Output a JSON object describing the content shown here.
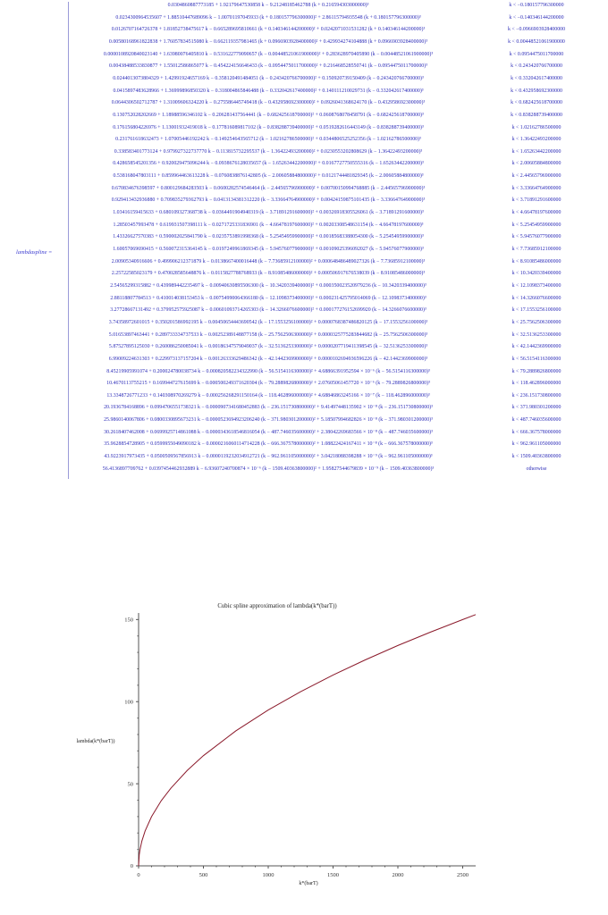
{
  "piecewise": {
    "label": "lambdaspline =",
    "rows": [
      {
        "expr": "0.0304860887773185 + 1.92179647530858 k − 9.21248185462788 (k + 0.216594303000000)³",
        "cond": "k < −0.180157796300000"
      },
      {
        "expr": "0.0234300964535607 + 1.88510447689096 k − 1.00701197045933 (k + 0.180157796300000)² + 2.86115794935548 (k + 0.180157796300000)³",
        "cond": "k < −0.140346144200000"
      },
      {
        "expr": "0.0126707164726378 + 1.81852738475617 k − 0.665289695810661 (k + 0.140346144200000)² + 0.0242071031531282 (k + 0.140346144200000)³",
        "cond": "k < −0.0966903928400000"
      },
      {
        "expr": "0.00580168961822838 + 1.76057834515080 k − 0.662119357981465 (k + 0.0966903928400000)² + 0.429934274104888 (k + 0.0966903928400000)³",
        "cond": "k < 0.00448521061900000"
      },
      {
        "expr": "0.0000108920840023140 + 1.63980076405810 k − 0.531622779090657 (k − 0.00448521061900000)² + 0.283628970405890 (k − 0.00448521061900000)³",
        "cond": "k < 0.0954475011700000"
      },
      {
        "expr": "0.00438488533830877 + 1.55012586865077 k − 0.454224156646433 (k − 0.0954475011700000)² + 0.216468528550741 (k − 0.0954475011700000)³",
        "cond": "k < 0.243420766700000"
      },
      {
        "expr": "0.0244013073804329 + 1.42991924657169 k − 0.358120491484051 (k − 0.243420766700000)² + 0.150920739150409 (k − 0.243420766700000)³",
        "cond": "k < 0.332042617400000"
      },
      {
        "expr": "0.0415897483628966 + 1.36999896850320 k − 0.318004865846488 (k − 0.332042617400000)² + 0.140111210029731 (k − 0.332042617400000)³",
        "cond": "k < 0.432958692300000"
      },
      {
        "expr": "0.0644306502712787 + 1.31009606324220 k − 0.275586445749418 (k − 0.432958692300000)² + 0.0926041368624170 (k − 0.432958692300000)³",
        "cond": "k < 0.682425618700000"
      },
      {
        "expr": "0.130752028202669 + 1.18988596346102 k − 0.206281437564441 (k − 0.682425618700000)² + 0.0608768078458791 (k − 0.682425618700000)³",
        "cond": "k < 0.838288739400000"
      },
      {
        "expr": "0.176156804226976 + 1.13001932419018 k − 0.177816089817102 (k − 0.838288739400000)² + 0.0519282616443149 (k − 0.838288739400000)³",
        "cond": "k < 1.02162786500000"
      },
      {
        "expr": "0.231761618632473 + 1.07005446192242 k − 0.149254643565712 (k − 1.02162786500000)² + 0.0344806525252356 (k − 1.02162786500000)³",
        "cond": "k < 1.36422493200000"
      },
      {
        "expr": "0.338583401773124 + 0.979927322737770 k − 0.113815732295537 (k − 1.36422493200000)² + 0.0230553202808629 (k − 1.36422493200000)³",
        "cond": "k < 1.65263442200000"
      },
      {
        "expr": "0.428658545201356 + 0.920029475096244 k − 0.0938676128035657 (k − 1.65263442200000)² + 0.0167727750555316 (k − 1.65263442200000)³",
        "cond": "k < 2.00605884800000"
      },
      {
        "expr": "0.538168047803111 + 0.859964463613228 k − 0.0760838876142805 (k − 2.00605884800000)² + 0.0121744481829345 (k − 2.00605884800000)³",
        "cond": "k < 2.44565796900000"
      },
      {
        "expr": "0.670834676398597 + 0.800129684283503 k − 0.0600282574546464 (k − 2.44565796900000)² + 0.00700150994768885 (k − 2.44565796900000)³",
        "cond": "k < 3.33664764900000"
      },
      {
        "expr": "0.929413432936880 + 0.709835279362793 k − 0.0413134381312220 (k − 3.33664764900000)² + 0.00424159875101435 (k − 3.33664764900000)³",
        "cond": "k < 3.71891291600000"
      },
      {
        "expr": "1.03416159415633 + 0.680109327368738 k − 0.0364491904940319 (k − 3.71891291600000)² + 0.00326918305526061 (k − 3.71891291600000)³",
        "cond": "k < 4.66478197600000"
      },
      {
        "expr": "1.28503457993478 + 0.619931507398111 k − 0.0271725331836901 (k − 4.66478197600000)² + 0.00203308548631154 (k − 4.66478197600000)³",
        "cond": "k < 5.25454959900000"
      },
      {
        "expr": "1.43326627570383 + 0.590002025841790 k − 0.0235753891998368 (k − 5.25454959900000)² + 0.00185683388054300 (k − 5.25454959900000)³",
        "cond": "k < 5.94576077900000"
      },
      {
        "expr": "1.60057069690415 + 0.560072315364145 k − 0.0197249961869345 (k − 5.94576077900000)² + 0.00109025396092027 (k − 5.94576077900000)³",
        "cond": "k < 7.73685912100000"
      },
      {
        "expr": "2.00905340916606 + 0.499906212371879 k − 0.0138667400016448 (k − 7.73685912100000)² + 0.000648486489027326 (k − 7.73685912100000)³",
        "cond": "k < 8.91085486000000"
      },
      {
        "expr": "2.25722585023179 + 0.470028585648876 k − 0.0115827788768933 (k − 8.91085486000000)² + 0.000506917676538039 (k − 8.91085486000000)³",
        "cond": "k < 10.3420339400000"
      },
      {
        "expr": "2.54565299315882 + 0.439989442235497 k − 0.00940630895506300 (k − 10.3420339400000)² + 0.000350023520979236 (k − 10.3420339400000)³",
        "cond": "k < 12.1098373400000"
      },
      {
        "expr": "2.88118807784513 + 0.410014038153453 k − 0.00754990064366180 (k − 12.1098373400000)² + 0.000231425795014069 (k − 12.1098373400000)³",
        "cond": "k < 14.3266076600000"
      },
      {
        "expr": "3.27728667131492 + 0.379952575925087 k − 0.00601093714265303 (k − 14.3266076600000)² + 0.000177276152699920 (k − 14.3266076600000)³",
        "cond": "k < 17.1553256100000"
      },
      {
        "expr": "3.74358972601015 + 0.350201586992195 k − 0.00450654443690542 (k − 17.1553256100000)² + 0.0000768387486820125 (k − 17.1553256100000)³",
        "cond": "k < 25.7562506300000"
      },
      {
        "expr": "5.01653897463441 + 0.289733334737533 k − 0.00252389148877158 (k − 25.7562506300000)² + 0.0000325775283844682 (k − 25.7562506300000)³",
        "cond": "k < 32.5136253300000"
      },
      {
        "expr": "5.87527895125030 + 0.260086250085041 k − 0.00186347579049037 (k − 32.5136253300000)² + 0.0000207719411398545 (k − 32.5136253300000)³",
        "cond": "k < 42.1442369900000"
      },
      {
        "expr": "6.99009224631303 + 0.229973137157204 k − 0.00126333629486342 (k − 42.1442369900000)² + 0.0000102694936596226 (k − 42.1442369900000)³",
        "cond": "k < 56.5154116300000"
      },
      {
        "expr": "8.45219905991074 + 0.200024780038734 k − 0.000820582234322990 (k − 56.5154116300000)² + 4.68866391952594 × 10⁻⁶ (k − 56.5154116300000)³",
        "cond": "k < 79.2889826800000"
      },
      {
        "expr": "10.4670113755215 + 0.169944727615699 k − 0.000500249371620304 (k − 79.2889826800000)² + 2.07605061457720 × 10⁻⁶ (k − 79.2889826800000)³",
        "cond": "k < 118.462896000000"
      },
      {
        "expr": "13.3348726771233 + 0.140308970269279 k − 0.000256268291150164 (k − 118.462896000000)² + 4.68846863245166 × 10⁻⁷ (k − 118.462896000000)³",
        "cond": "k < 236.151730800000"
      },
      {
        "expr": "20.1936784168896 + 0.0994706551738321 k − 0.0000907341680452883 (k − 236.151730800000)² + 9.41497448135902 × 10⁻⁸ (k − 236.151730800000)³",
        "cond": "k < 371.980301200000"
      },
      {
        "expr": "25.9860140067806 + 0.0800330895673231 k − 0.0000523694923206240 (k − 371.980301200000)² + 5.18507994682826 × 10⁻⁸ (k − 371.980301200000)³",
        "cond": "k < 487.746035600000"
      },
      {
        "expr": "30.2618407462008 + 0.0699925714861088 k − 0.0000343618546816054 (k − 487.746035600000)² + 2.38042269683566 × 10⁻⁸ (k − 487.746035600000)³",
        "cond": "k < 666.367578000000"
      },
      {
        "expr": "35.9628854728905 + 0.0599955049090182 k − 0.0000216060114714228 (k − 666.367578000000)² + 1.08822424167411 × 10⁻⁸ (k − 666.367578000000)³",
        "cond": "k < 962.961105000000"
      },
      {
        "expr": "43.9223917973435 + 0.0500509567856913 k − 0.0000119232034912721 (k − 962.961105000000)² + 3.04218088398288 × 10⁻⁹ (k − 962.961105000000)³",
        "cond": "k < 1509.40363800000"
      },
      {
        "expr": "56.4136897709762 + 0.0397454462932889 k − 6.93607240700874 × 10⁻⁶ (k − 1509.40363800000)² + 1.95827544679839 × 10⁻⁹ (k − 1509.40363800000)³",
        "cond": "otherwise"
      }
    ]
  },
  "chart_data": {
    "type": "line",
    "title": "Cubic spline approximation of lambda(k*(barT))",
    "xlabel": "k*(barT)",
    "ylabel": "lambda(k*(barT))",
    "xlim": [
      0,
      2600
    ],
    "ylim": [
      0,
      154
    ],
    "xticks": [
      0,
      500,
      1000,
      1500,
      2000,
      2500
    ],
    "yticks": [
      0,
      50,
      100,
      150
    ],
    "grid": false,
    "line_color": "#8b1a2b",
    "series": [
      {
        "x": [
          0,
          5,
          10,
          25,
          50,
          100,
          175,
          250,
          375,
          500,
          750,
          1000,
          1250,
          1500,
          1750,
          2000,
          2250,
          2500,
          2600
        ],
        "y": [
          0,
          6.7,
          9.5,
          15,
          21.2,
          30,
          39.7,
          47.4,
          58.1,
          67.1,
          82.2,
          94.9,
          106.1,
          116.2,
          125.5,
          134.2,
          142.3,
          150,
          153
        ]
      }
    ]
  },
  "colors": {
    "math_text": "#2c2cb8",
    "axis": "#555555"
  }
}
